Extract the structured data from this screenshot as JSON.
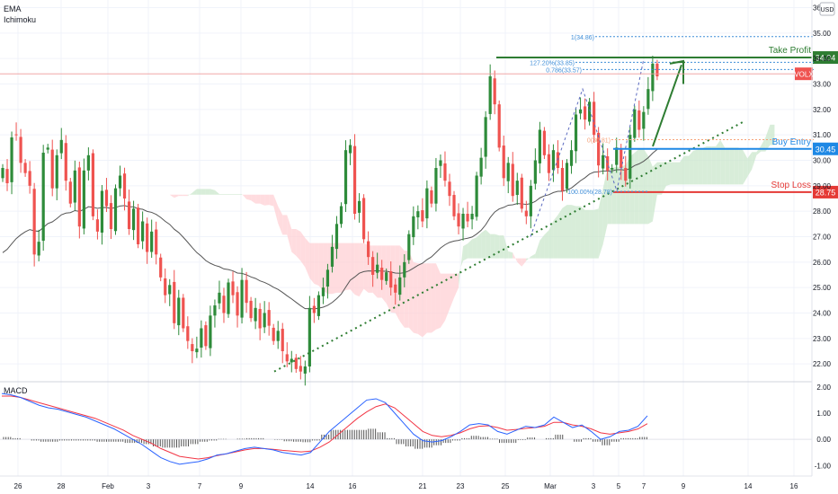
{
  "indicators": {
    "ema": "EMA",
    "ichimoku": "Ichimoku",
    "macd": "MACD"
  },
  "currency": "USD",
  "ticker": "VOLX",
  "colors": {
    "up": "#26a69a",
    "up_candle": "#2e8b3a",
    "down": "#ef5350",
    "cloud_bull": "#c8e6c9",
    "cloud_bear": "#ffcdd2",
    "ema": "#555555",
    "tp": "#2e7d32",
    "buy": "#1e88e5",
    "sl": "#e53935",
    "macd": "#2962ff",
    "signal": "#f23645",
    "trend": "#2e7d32"
  },
  "chart_data": [
    {
      "type": "candlestick",
      "y_ticks": [
        "36.00",
        "35.00",
        "34.00",
        "33.00",
        "32.00",
        "31.00",
        "30.00",
        "29.00",
        "28.00",
        "27.00",
        "26.00",
        "25.00",
        "24.00",
        "23.00",
        "22.00"
      ],
      "ylim": [
        21.3,
        36.3
      ],
      "x_ticks": [
        "26",
        "28",
        "Feb",
        "3",
        "7",
        "9",
        "14",
        "16",
        "21",
        "23",
        "25",
        "Mar",
        "3",
        "5",
        "7",
        "9",
        "14",
        "16"
      ],
      "close": [
        29.7,
        29.1,
        30.9,
        31.0,
        29.9,
        29.5,
        29.0,
        26.3,
        26.8,
        30.3,
        30.5,
        28.9,
        30.2,
        30.8,
        29.2,
        28.3,
        29.6,
        27.4,
        29.6,
        30.2,
        27.8,
        27.2,
        28.8,
        28.2,
        27.3,
        28.9,
        29.4,
        28.5,
        27.3,
        28.1,
        26.7,
        27.6,
        26.4,
        27.2,
        26.3,
        25.4,
        24.7,
        25.1,
        23.6,
        24.6,
        23.4,
        22.9,
        22.5,
        22.6,
        23.4,
        22.7,
        23.9,
        24.3,
        24.8,
        24.0,
        25.2,
        24.7,
        23.9,
        25.3,
        24.4,
        23.8,
        24.2,
        23.4,
        24.0,
        23.5,
        22.9,
        23.3,
        22.5,
        22.1,
        22.2,
        21.8,
        21.7,
        21.9,
        24.2,
        24.0,
        24.7,
        25.0,
        25.7,
        26.6,
        27.5,
        28.2,
        30.4,
        30.6,
        27.9,
        28.4,
        26.9,
        26.2,
        25.5,
        25.9,
        25.3,
        25.6,
        25.0,
        24.8,
        25.4,
        26.0,
        27.1,
        27.8,
        28.0,
        27.6,
        28.9,
        28.3,
        29.7,
        30.0,
        29.2,
        28.6,
        27.8,
        27.4,
        27.9,
        27.6,
        27.9,
        29.4,
        30.1,
        31.7,
        33.3,
        32.2,
        30.5,
        29.3,
        29.9,
        28.6,
        29.2,
        28.1,
        27.8,
        29.0,
        30.0,
        31.2,
        30.2,
        29.5,
        30.4,
        29.7,
        28.8,
        29.9,
        30.4,
        31.8,
        32.0,
        31.6,
        32.3,
        31.0,
        29.8,
        30.2,
        29.6,
        29.7,
        30.5,
        29.7,
        29.2,
        31.0,
        32.0,
        31.2,
        31.9,
        32.8,
        33.8,
        33.3
      ],
      "support_trendline": {
        "from_value": 21.7,
        "to_value": 31.5
      },
      "levels": [
        {
          "label": "Take Profit",
          "price_label": "34.04",
          "value": 34.04
        },
        {
          "label": "Buy Entry",
          "price_label": "30.45",
          "value": 30.45
        },
        {
          "label": "Stop Loss",
          "price_label": "28.75",
          "value": 28.75
        }
      ],
      "fibonacci": [
        {
          "label": "1(34.86)",
          "value": 34.86
        },
        {
          "label": "127.20%(33.85)",
          "value": 33.85
        },
        {
          "label": "0.786(33.57)",
          "value": 33.57
        },
        {
          "label": "0(30.81)",
          "value": 30.81
        },
        {
          "label": "100.00%(28.78)",
          "value": 28.78
        }
      ],
      "last_price_label": "VOLX",
      "last_price_value": 33.4
    },
    {
      "type": "line",
      "title": "MACD",
      "y_ticks": [
        "2.00",
        "1.00",
        "0.00",
        "-1.00"
      ],
      "ylim": [
        -1.4,
        2.2
      ],
      "series": [
        {
          "values": [
            1.75,
            1.7,
            1.6,
            1.45,
            1.3,
            1.2,
            1.15,
            1.05,
            0.95,
            0.85,
            0.7,
            0.55,
            0.4,
            0.2,
            0.0,
            -0.2,
            -0.45,
            -0.7,
            -0.85,
            -0.95,
            -0.9,
            -0.85,
            -0.75,
            -0.6,
            -0.55,
            -0.45,
            -0.35,
            -0.3,
            -0.35,
            -0.4,
            -0.5,
            -0.55,
            -0.6,
            -0.5,
            -0.1,
            0.3,
            0.6,
            0.9,
            1.2,
            1.5,
            1.55,
            1.4,
            1.0,
            0.6,
            0.2,
            -0.05,
            -0.1,
            -0.05,
            0.1,
            0.3,
            0.55,
            0.6,
            0.55,
            0.3,
            0.2,
            0.35,
            0.5,
            0.45,
            0.55,
            0.85,
            0.65,
            0.45,
            0.55,
            0.3,
            0.0,
            0.1,
            0.3,
            0.35,
            0.5,
            0.9
          ]
        },
        {
          "values": [
            1.65,
            1.65,
            1.6,
            1.5,
            1.4,
            1.3,
            1.2,
            1.1,
            1.0,
            0.9,
            0.8,
            0.65,
            0.5,
            0.35,
            0.15,
            0.0,
            -0.15,
            -0.35,
            -0.5,
            -0.65,
            -0.7,
            -0.75,
            -0.7,
            -0.62,
            -0.55,
            -0.48,
            -0.4,
            -0.35,
            -0.35,
            -0.38,
            -0.42,
            -0.45,
            -0.48,
            -0.45,
            -0.3,
            -0.1,
            0.2,
            0.5,
            0.8,
            1.05,
            1.25,
            1.35,
            1.2,
            0.9,
            0.6,
            0.3,
            0.15,
            0.1,
            0.15,
            0.25,
            0.4,
            0.5,
            0.52,
            0.45,
            0.35,
            0.38,
            0.42,
            0.45,
            0.5,
            0.65,
            0.65,
            0.55,
            0.5,
            0.4,
            0.25,
            0.2,
            0.25,
            0.3,
            0.4,
            0.6
          ]
        }
      ]
    }
  ]
}
